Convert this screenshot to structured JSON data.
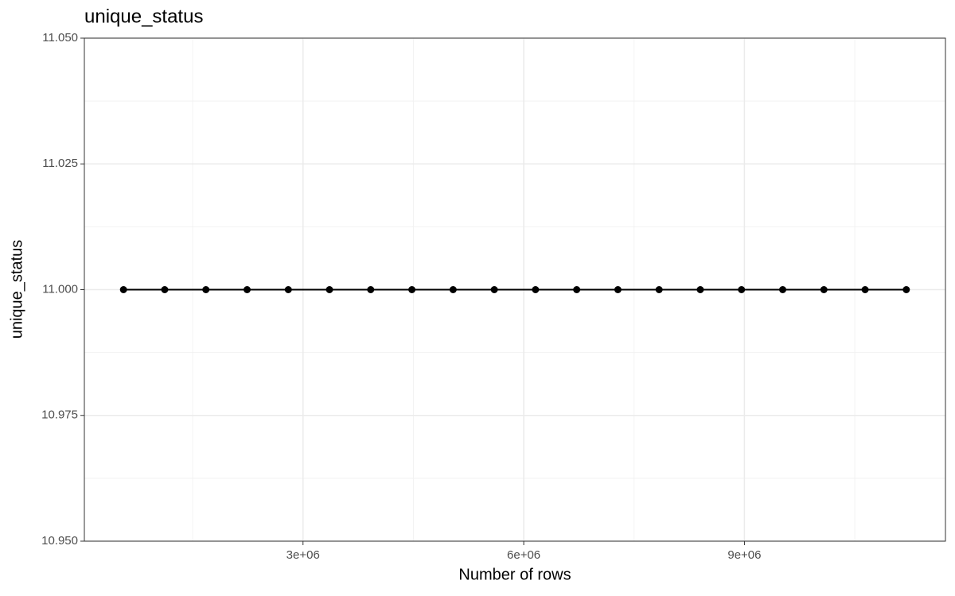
{
  "chart_data": {
    "type": "line",
    "title": "unique_status",
    "x_label": "Number of rows",
    "y_label": "unique_status",
    "x": [
      560000,
      1120000,
      1680000,
      2240000,
      2800000,
      3360000,
      3920000,
      4480000,
      5040000,
      5600000,
      6160000,
      6720000,
      7280000,
      7840000,
      8400000,
      8960000,
      9520000,
      10080000,
      10640000,
      11200000
    ],
    "series": [
      {
        "name": "unique_status",
        "color": "#000000",
        "values": [
          11,
          11,
          11,
          11,
          11,
          11,
          11,
          11,
          11,
          11,
          11,
          11,
          11,
          11,
          11,
          11,
          11,
          11,
          11,
          11
        ]
      }
    ],
    "xlim": [
      28000,
      11732000
    ],
    "xticks": [
      {
        "value": 3000000,
        "label": "3e+06"
      },
      {
        "value": 6000000,
        "label": "6e+06"
      },
      {
        "value": 9000000,
        "label": "9e+06"
      }
    ],
    "ylim": [
      10.95,
      11.05
    ],
    "yticks": [
      {
        "value": 10.95,
        "label": "10.950"
      },
      {
        "value": 10.975,
        "label": "10.975"
      },
      {
        "value": 11,
        "label": "11.000"
      },
      {
        "value": 11.025,
        "label": "11.025"
      },
      {
        "value": 11.05,
        "label": "11.050"
      }
    ],
    "grid": true
  }
}
